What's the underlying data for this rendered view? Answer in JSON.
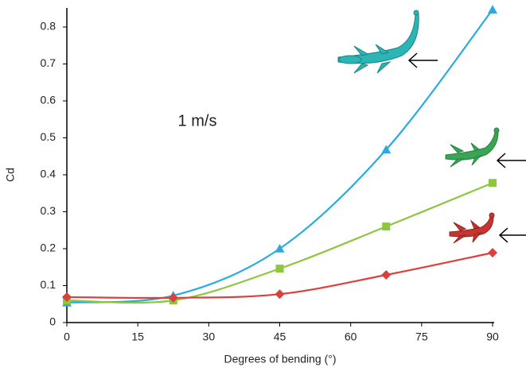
{
  "chart_data": {
    "type": "line",
    "x_label": "Degrees of bending (°)",
    "y_label": "Cd",
    "annotation": "1 m/s",
    "x": [
      0,
      22.5,
      45,
      67.5,
      90
    ],
    "series": [
      {
        "color": "#29abe2",
        "marker": "triangle",
        "values": [
          0.054,
          0.073,
          0.2,
          0.468,
          0.847
        ]
      },
      {
        "color": "#8dc63f",
        "marker": "square",
        "values": [
          0.06,
          0.06,
          0.146,
          0.26,
          0.378
        ]
      },
      {
        "color": "#d9413f",
        "marker": "diamond",
        "values": [
          0.069,
          0.067,
          0.077,
          0.129,
          0.189
        ]
      }
    ],
    "xlim": [
      0,
      90
    ],
    "xticks": [
      0,
      15,
      30,
      45,
      60,
      75,
      90
    ],
    "ylim": [
      0,
      0.8
    ],
    "yticks": [
      0,
      0.1,
      0.2,
      0.3,
      0.4,
      0.5,
      0.6,
      0.7,
      0.8
    ],
    "smooth": true
  }
}
